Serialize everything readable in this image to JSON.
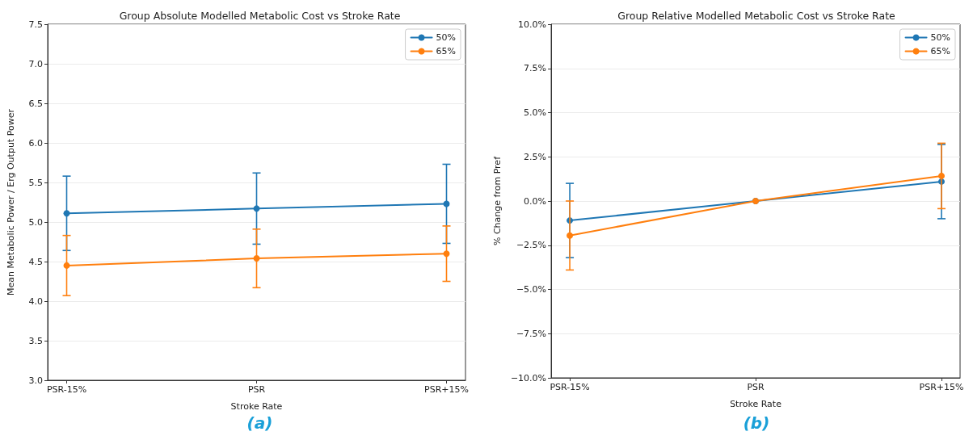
{
  "chart_data": [
    {
      "type": "line",
      "title": "Group Absolute Modelled Metabolic Cost vs Stroke Rate",
      "xlabel": "Stroke Rate",
      "ylabel": "Mean Metabolic Power / Erg Output Power",
      "annotations": [
        "(a)"
      ],
      "categories": [
        "PSR-15%",
        "PSR",
        "PSR+15%"
      ],
      "series": [
        {
          "name": "50%",
          "color": "#1f77b4",
          "values": [
            5.11,
            5.17,
            5.23
          ],
          "errors": [
            0.47,
            0.45,
            0.5
          ]
        },
        {
          "name": "65%",
          "color": "#ff7f0e",
          "values": [
            4.45,
            4.54,
            4.6
          ],
          "errors": [
            0.38,
            0.37,
            0.35
          ]
        }
      ],
      "ylim": [
        3,
        7.5
      ],
      "yticks": [
        {
          "value": 3,
          "label": "3.0"
        },
        {
          "value": 3.5,
          "label": "3.5"
        },
        {
          "value": 4,
          "label": "4.0"
        },
        {
          "value": 4.5,
          "label": "4.5"
        },
        {
          "value": 5,
          "label": "5.0"
        },
        {
          "value": 5.5,
          "label": "5.5"
        },
        {
          "value": 6,
          "label": "6.0"
        },
        {
          "value": 6.5,
          "label": "6.5"
        },
        {
          "value": 7,
          "label": "7.0"
        },
        {
          "value": 7.5,
          "label": "7.5"
        }
      ],
      "grid": "y",
      "legend": "top right",
      "marker": "circle",
      "line_style": "solid"
    },
    {
      "type": "line",
      "title": "Group Relative Modelled Metabolic Cost vs Stroke Rate",
      "xlabel": "Stroke Rate",
      "ylabel": "% Change from Pref",
      "annotations": [
        "(b)"
      ],
      "categories": [
        "PSR-15%",
        "PSR",
        "PSR+15%"
      ],
      "series": [
        {
          "name": "50%",
          "color": "#1f77b4",
          "values": [
            -1.1,
            0,
            1.1
          ],
          "errors": [
            2.1,
            null,
            2.1
          ]
        },
        {
          "name": "65%",
          "color": "#ff7f0e",
          "values": [
            -1.95,
            0,
            1.42
          ],
          "errors": [
            1.95,
            null,
            1.85
          ]
        }
      ],
      "ylim": [
        -10,
        10
      ],
      "yticks": [
        {
          "value": -10,
          "label": "−10.0%"
        },
        {
          "value": -7.5,
          "label": "−7.5%"
        },
        {
          "value": -5,
          "label": "−5.0%"
        },
        {
          "value": -2.5,
          "label": "−2.5%"
        },
        {
          "value": 0,
          "label": "0.0%"
        },
        {
          "value": 2.5,
          "label": "2.5%"
        },
        {
          "value": 5,
          "label": "5.0%"
        },
        {
          "value": 7.5,
          "label": "7.5%"
        },
        {
          "value": 10,
          "label": "10.0%"
        }
      ],
      "grid": "y",
      "legend": "top right",
      "marker": "circle",
      "line_style": "solid"
    }
  ]
}
